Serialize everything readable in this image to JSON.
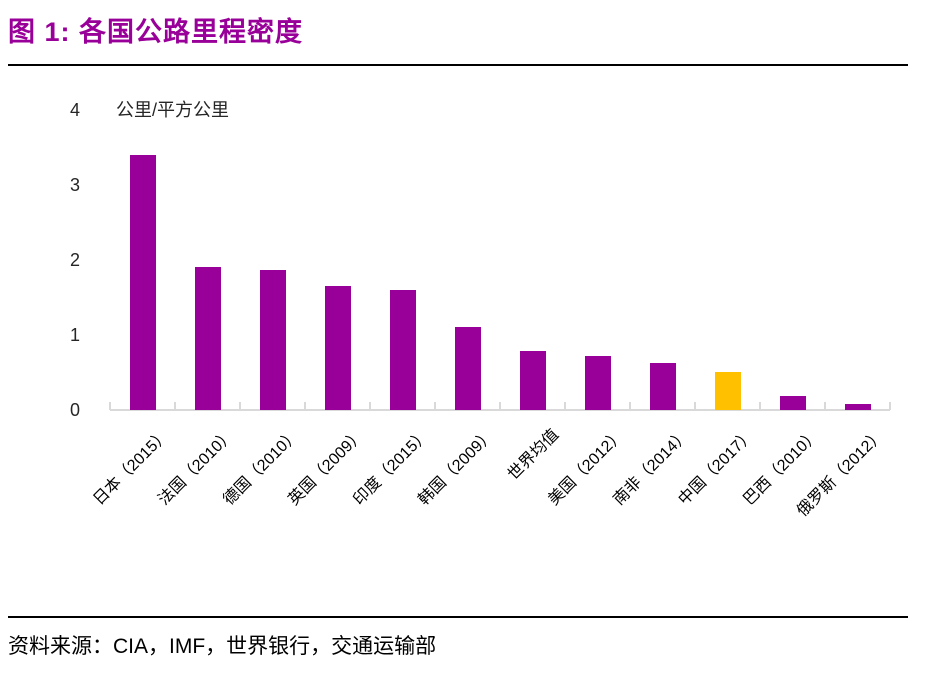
{
  "header": {
    "title": "图 1:  各国公路里程密度",
    "title_color": "#990099"
  },
  "chart_data": {
    "type": "bar",
    "title": "各国公路里程密度",
    "unit_label": "公里/平方公里",
    "categories": [
      "日本（2015）",
      "法国（2010）",
      "德国（2010）",
      "英国（2009）",
      "印度（2015）",
      "韩国（2009）",
      "世界均值",
      "美国（2012）",
      "南非（2014）",
      "中国（2017）",
      "巴西（2010）",
      "俄罗斯（2012）"
    ],
    "values": [
      3.4,
      1.9,
      1.87,
      1.65,
      1.6,
      1.1,
      0.78,
      0.72,
      0.62,
      0.5,
      0.18,
      0.08
    ],
    "xlabel": "",
    "ylabel": "公里/平方公里",
    "ylim": [
      0,
      4
    ],
    "yticks": [
      4,
      3,
      2,
      1,
      0
    ],
    "bar_color": "#990099",
    "highlight_index": 9,
    "highlight_color": "#FFC000",
    "axis_color": "#d9d9d9",
    "grid": false,
    "legend": "none"
  },
  "footer": {
    "source": "资料来源：CIA，IMF，世界银行，交通运输部"
  }
}
